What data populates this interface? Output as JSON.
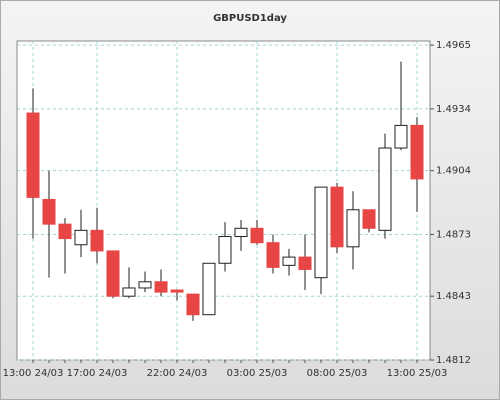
{
  "chart_data": {
    "type": "candlestick",
    "title": "GBPUSD1day",
    "categories": [
      "13:00 24/03",
      null,
      null,
      null,
      "17:00 24/03",
      null,
      null,
      null,
      null,
      "22:00 24/03",
      null,
      null,
      null,
      null,
      "03:00 25/03",
      null,
      null,
      null,
      null,
      "08:00 25/03",
      null,
      null,
      null,
      null,
      "13:00 25/03"
    ],
    "series": [
      {
        "open": [
          1.4932,
          1.489,
          1.4878,
          1.4868,
          1.4875,
          1.4865,
          1.4843,
          1.4847,
          1.485,
          1.4846,
          1.4844,
          1.4834,
          1.4859,
          1.4872,
          1.4876,
          1.4869,
          1.4858,
          1.4862,
          1.4852,
          1.4896,
          1.4867,
          1.4885,
          1.4875,
          1.4915,
          1.4926
        ],
        "high": [
          1.4944,
          1.4904,
          1.4881,
          1.4885,
          1.4886,
          1.4865,
          1.4857,
          1.4855,
          1.4856,
          1.4846,
          1.4844,
          1.4859,
          1.4879,
          1.488,
          1.488,
          1.4873,
          1.4866,
          1.4873,
          1.4896,
          1.4898,
          1.4894,
          1.4885,
          1.4922,
          1.4957,
          1.493
        ],
        "low": [
          1.4871,
          1.4852,
          1.4854,
          1.4862,
          1.4859,
          1.4842,
          1.4842,
          1.4845,
          1.4843,
          1.4841,
          1.4831,
          1.4834,
          1.4855,
          1.4865,
          1.4868,
          1.4854,
          1.4853,
          1.4846,
          1.4844,
          1.4864,
          1.4856,
          1.4874,
          1.4871,
          1.4914,
          1.4884
        ],
        "close": [
          1.4891,
          1.4878,
          1.4871,
          1.4875,
          1.4865,
          1.4843,
          1.4847,
          1.485,
          1.4845,
          1.4845,
          1.4834,
          1.4859,
          1.4872,
          1.4876,
          1.4869,
          1.4857,
          1.4862,
          1.4856,
          1.4896,
          1.4867,
          1.4885,
          1.4876,
          1.4915,
          1.4926,
          1.49
        ],
        "up_color": "#ffffff",
        "down_color": "#e84545"
      }
    ],
    "ylim": [
      1.4812,
      1.4967
    ],
    "yticks": [
      1.4812,
      1.4843,
      1.4873,
      1.4904,
      1.4934,
      1.4965
    ],
    "grid": true
  }
}
